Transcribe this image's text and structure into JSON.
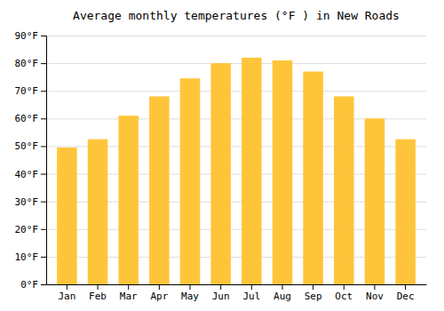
{
  "chart_data": {
    "type": "bar",
    "title": "Average monthly temperatures (°F ) in New Roads",
    "categories": [
      "Jan",
      "Feb",
      "Mar",
      "Apr",
      "May",
      "Jun",
      "Jul",
      "Aug",
      "Sep",
      "Oct",
      "Nov",
      "Dec"
    ],
    "values": [
      49.5,
      52.5,
      61.0,
      68.0,
      74.5,
      80.0,
      82.0,
      81.0,
      77.0,
      68.0,
      60.0,
      52.5
    ],
    "color": "#FFC53A",
    "ylim": [
      0,
      90
    ],
    "yticks": [
      {
        "value": 0,
        "label": "0°F"
      },
      {
        "value": 10,
        "label": "10°F"
      },
      {
        "value": 20,
        "label": "20°F"
      },
      {
        "value": 30,
        "label": "30°F"
      },
      {
        "value": 40,
        "label": "40°F"
      },
      {
        "value": 50,
        "label": "50°F"
      },
      {
        "value": 60,
        "label": "60°F"
      },
      {
        "value": 70,
        "label": "70°F"
      },
      {
        "value": 80,
        "label": "80°F"
      },
      {
        "value": 90,
        "label": "90°F"
      }
    ],
    "grid": true
  }
}
